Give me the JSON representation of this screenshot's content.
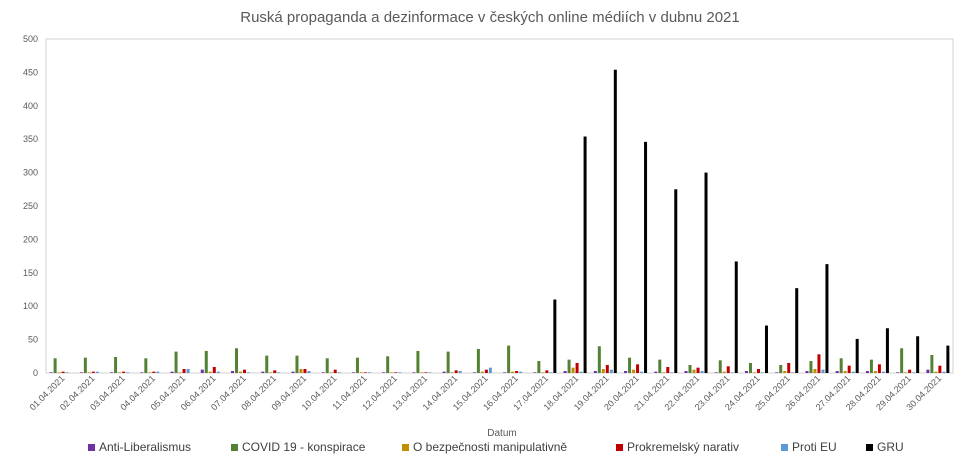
{
  "chart_data": {
    "type": "bar",
    "title": "Ruská propaganda a dezinformace v českých online médiích v dubnu 2021",
    "xlabel": "Datum",
    "ylabel": "",
    "ylim": [
      0,
      500
    ],
    "yticks": [
      0,
      50,
      100,
      150,
      200,
      250,
      300,
      350,
      400,
      450,
      500
    ],
    "grid": false,
    "legend_position": "bottom",
    "categories": [
      "01.04.2021",
      "02.04.2021",
      "03.04.2021",
      "04.04.2021",
      "05.04.2021",
      "06.04.2021",
      "07.04.2021",
      "08.04.2021",
      "09.04.2021",
      "10.04.2021",
      "11.04.2021",
      "12.04.2021",
      "13.04.2021",
      "14.04.2021",
      "15.04.2021",
      "16.04.2021",
      "17.04.2021",
      "18.04.2021",
      "19.04.2021",
      "20.04.2021",
      "21.04.2021",
      "22.04.2021",
      "23.04.2021",
      "24.04.2021",
      "25.04.2021",
      "26.04.2021",
      "27.04.2021",
      "28.04.2021",
      "29.04.2021",
      "30.04.2021"
    ],
    "series": [
      {
        "name": "Anti-Liberalismus",
        "color": "#7030A0",
        "values": [
          1,
          1,
          1,
          1,
          2,
          5,
          3,
          2,
          2,
          1,
          1,
          1,
          1,
          2,
          1,
          1,
          1,
          3,
          3,
          3,
          2,
          3,
          1,
          3,
          1,
          3,
          3,
          3,
          1,
          5
        ]
      },
      {
        "name": "COVID 19 - konspirace",
        "color": "#548235",
        "values": [
          22,
          23,
          24,
          22,
          32,
          33,
          37,
          26,
          26,
          22,
          23,
          25,
          33,
          32,
          36,
          41,
          18,
          20,
          40,
          23,
          20,
          12,
          19,
          15,
          12,
          18,
          22,
          20,
          37,
          27
        ]
      },
      {
        "name": "O bezpečnosti manipulativně",
        "color": "#BF8F00",
        "values": [
          1,
          1,
          1,
          1,
          1,
          2,
          2,
          1,
          6,
          1,
          1,
          1,
          1,
          1,
          2,
          2,
          1,
          8,
          6,
          5,
          1,
          5,
          2,
          1,
          3,
          6,
          3,
          3,
          1,
          2
        ]
      },
      {
        "name": "Prokremelský narativ",
        "color": "#C00000",
        "values": [
          2,
          2,
          2,
          2,
          6,
          9,
          5,
          4,
          6,
          5,
          1,
          1,
          1,
          4,
          5,
          3,
          4,
          15,
          12,
          13,
          9,
          8,
          10,
          6,
          15,
          28,
          11,
          13,
          5,
          11
        ]
      },
      {
        "name": "Proti EU",
        "color": "#5B9BD5",
        "values": [
          1,
          2,
          1,
          2,
          6,
          2,
          1,
          1,
          3,
          1,
          1,
          1,
          1,
          3,
          8,
          2,
          1,
          2,
          5,
          2,
          1,
          3,
          1,
          1,
          1,
          5,
          2,
          2,
          1,
          2
        ]
      },
      {
        "name": "GRU",
        "color": "#000000",
        "values": [
          0,
          0,
          0,
          0,
          0,
          0,
          0,
          0,
          0,
          0,
          0,
          0,
          0,
          0,
          0,
          0,
          110,
          354,
          454,
          346,
          275,
          300,
          167,
          71,
          127,
          163,
          51,
          67,
          55,
          41
        ]
      }
    ]
  }
}
